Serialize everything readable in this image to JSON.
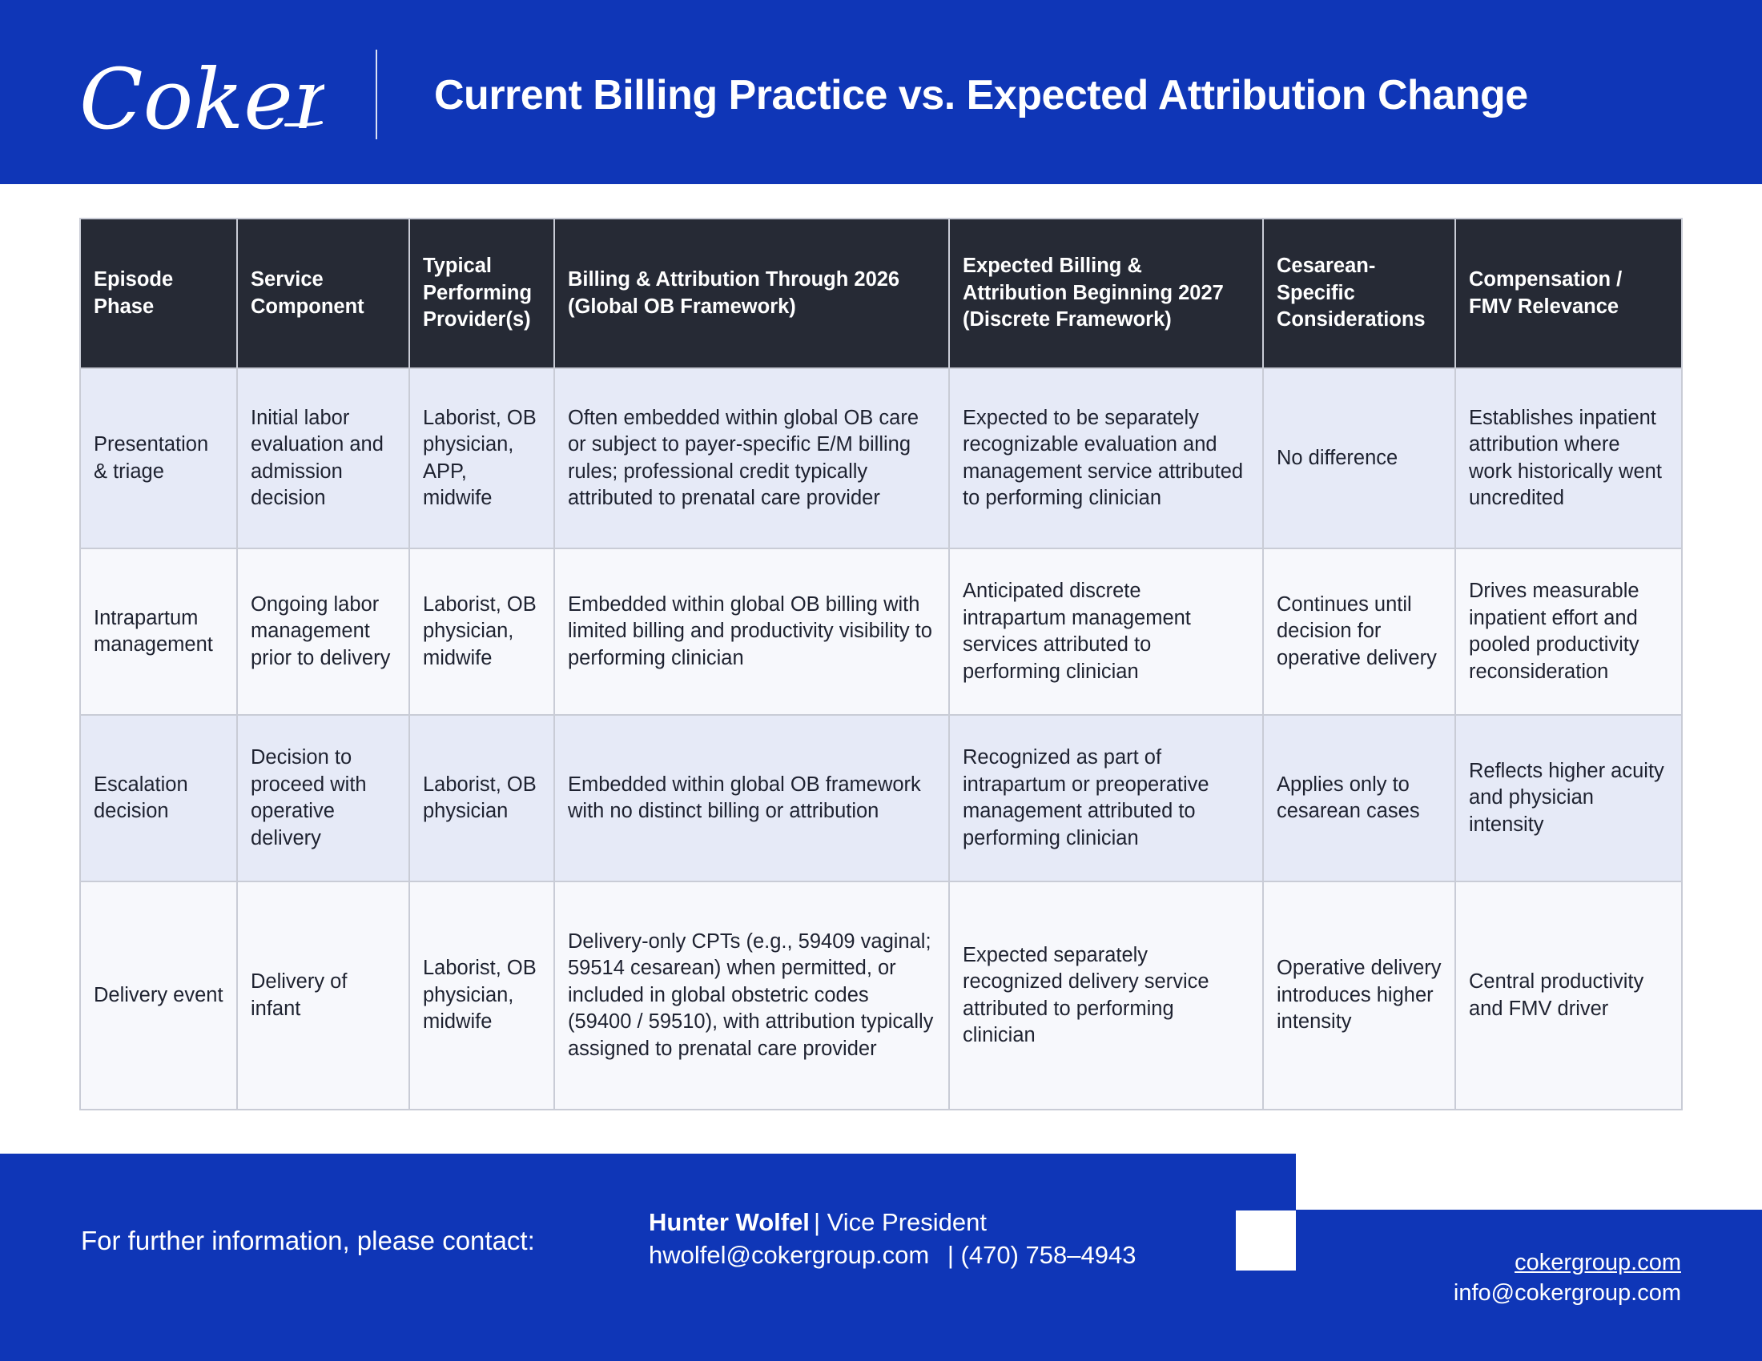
{
  "header": {
    "logo_text": "Coker",
    "title": "Current Billing Practice vs. Expected Attribution Change"
  },
  "table": {
    "headers": [
      "Episode Phase",
      "Service Component",
      "Typical Performing Provider(s)",
      "Billing & Attribution Through 2026 (Global OB Framework)",
      "Expected Billing & Attribution Beginning 2027 (Discrete Framework)",
      "Cesarean-Specific Considerations",
      "Compensation / FMV Relevance"
    ],
    "rows": [
      [
        "Presentation & triage",
        "Initial labor evaluation and admission decision",
        "Laborist, OB physician, APP, midwife",
        "Often embedded within global OB care or subject to payer-specific E/M billing rules; professional credit typically attributed to prenatal care provider",
        "Expected to be separately recognizable evaluation and management service attributed to performing clinician",
        "No difference",
        "Establishes inpatient attribution where work historically went uncredited"
      ],
      [
        "Intrapartum management",
        "Ongoing labor management prior to delivery",
        "Laborist, OB physician, midwife",
        "Embedded within global OB billing with limited billing and productivity visibility to performing clinician",
        "Anticipated discrete intrapartum management services attributed to performing clinician",
        "Continues until decision for operative delivery",
        "Drives measurable inpatient effort and pooled productivity reconsideration"
      ],
      [
        "Escalation decision",
        "Decision to proceed with operative delivery",
        "Laborist, OB physician",
        "Embedded within global OB framework with no distinct billing or attribution",
        "Recognized as part of intrapartum or preoperative management attributed to performing clinician",
        "Applies only to cesarean cases",
        "Reflects higher acuity and physician intensity"
      ],
      [
        "Delivery event",
        "Delivery of infant",
        "Laborist, OB physician, midwife",
        "Delivery-only CPTs (e.g., 59409 vaginal; 59514 cesarean) when permitted, or included in global obstetric codes (59400 / 59510), with attribution typically assigned to prenatal care provider",
        "Expected separately recognized delivery service attributed to performing clinician",
        "Operative delivery introduces higher intensity",
        "Central productivity and FMV driver"
      ]
    ]
  },
  "footer": {
    "prompt": "For further information, please contact:",
    "contact_name": "Hunter Wolfel",
    "contact_title": "| Vice President",
    "contact_email": "hwolfel@cokergroup.com",
    "contact_phone": "| (470) 758–4943",
    "site": "cokergroup.com",
    "info_email": "info@cokergroup.com"
  },
  "colors": {
    "brand_blue": "#0f36b7",
    "header_row": "#262a35",
    "row_tint": "#e6eaf7",
    "row_light": "#f7f8fc"
  }
}
